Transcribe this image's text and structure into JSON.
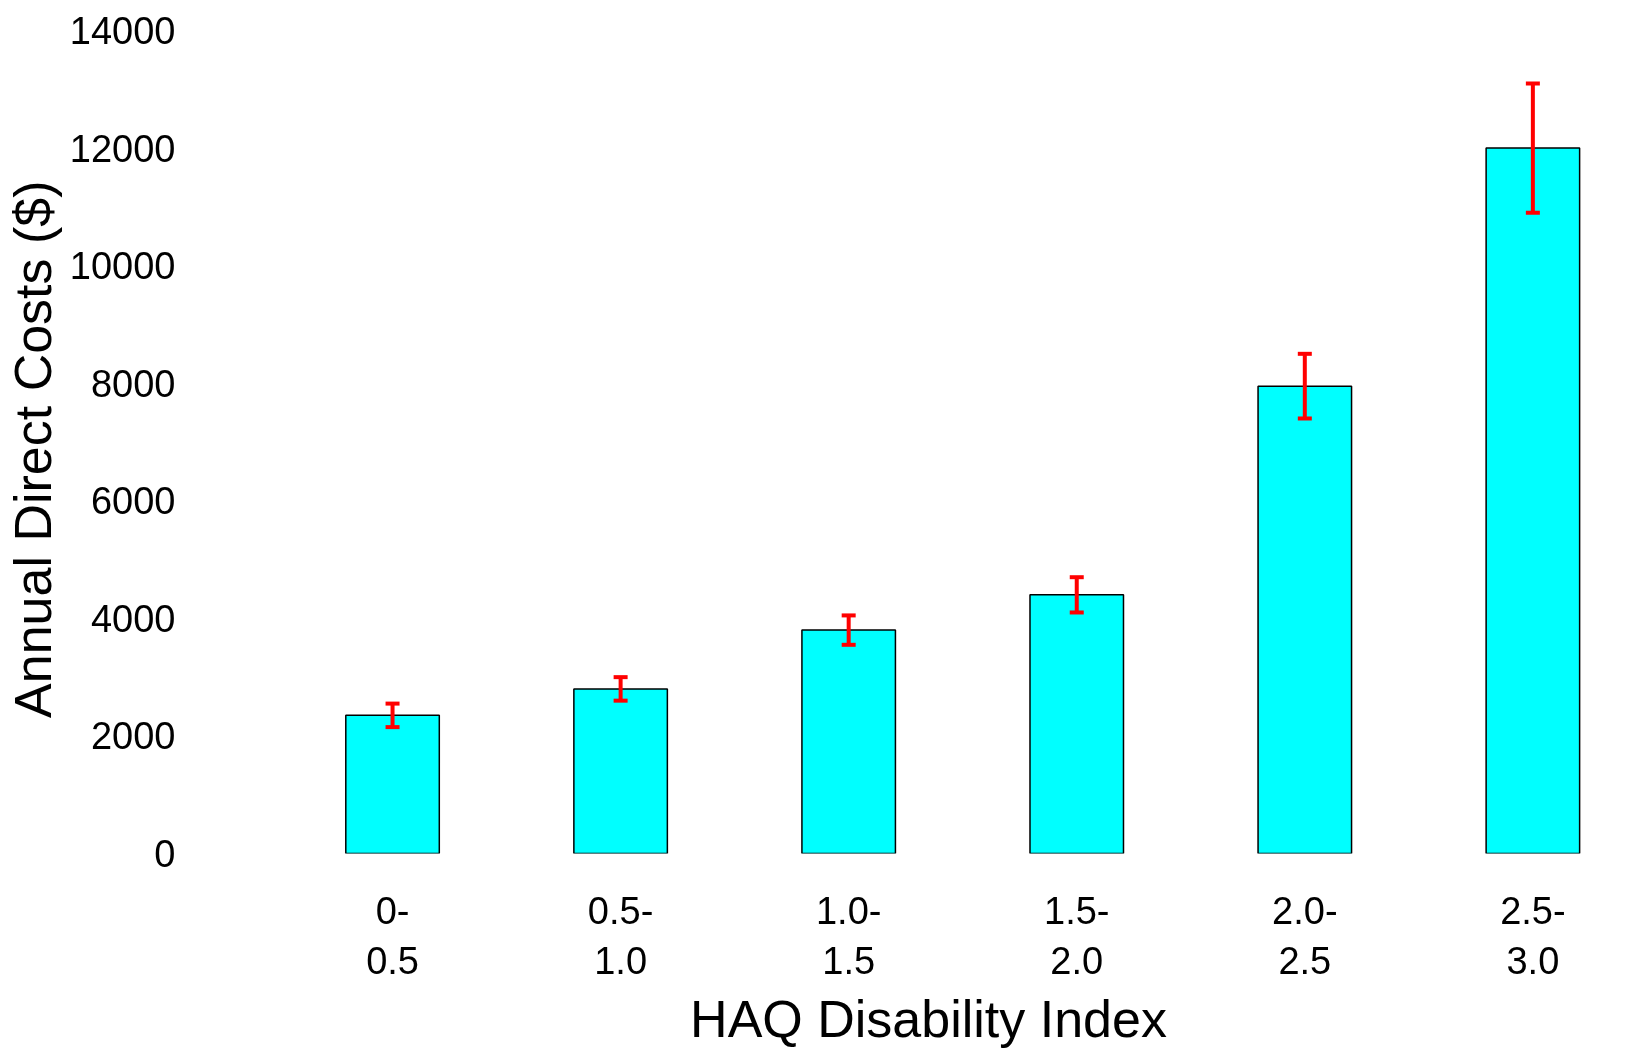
{
  "chart_data": {
    "type": "bar",
    "xlabel": "HAQ Disability Index",
    "ylabel": "Annual Direct Costs  ($)",
    "categories": [
      "0-\n0.5",
      "0.5-\n1.0",
      "1.0-\n1.5",
      "1.5-\n2.0",
      "2.0-\n2.5",
      "2.5-\n3.0"
    ],
    "values": [
      2350,
      2800,
      3800,
      4400,
      7950,
      12000
    ],
    "errors": [
      200,
      200,
      250,
      300,
      550,
      1100
    ],
    "color": "#00ffff",
    "ylim": [
      0,
      14000
    ],
    "yticks": [
      0,
      2000,
      4000,
      6000,
      8000,
      10000,
      12000,
      14000
    ],
    "grid": false
  }
}
